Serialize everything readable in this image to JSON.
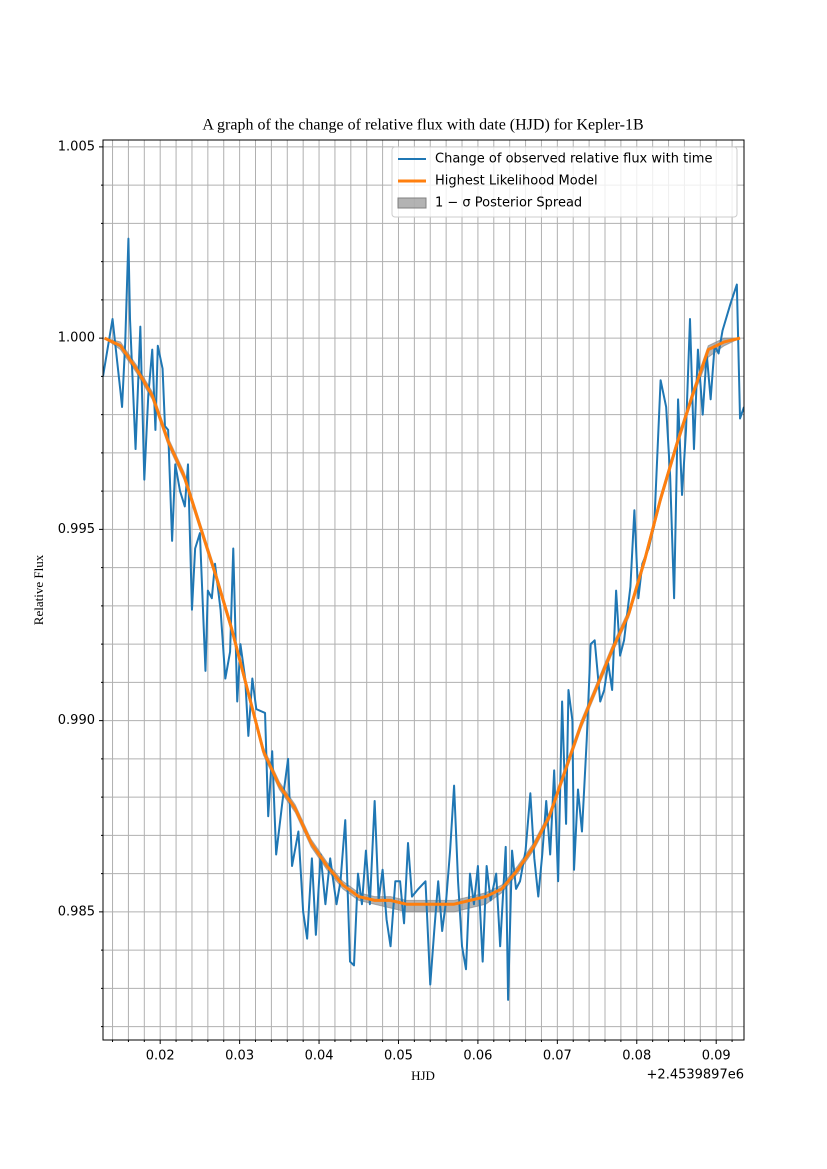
{
  "chart_data": {
    "type": "line",
    "title": "A graph of the change of relative flux with date (HJD) for Kepler-1B",
    "xlabel": "HJD",
    "ylabel": "Relative Flux",
    "x_offset_label": "+2.4539897e6",
    "xlim": [
      0.0128,
      0.0935
    ],
    "ylim": [
      0.98165,
      1.00518
    ],
    "xticks": [
      0.02,
      0.03,
      0.04,
      0.05,
      0.06,
      0.07,
      0.08,
      0.09
    ],
    "x_minor_ticks": [
      0.014,
      0.016,
      0.018,
      0.022,
      0.024,
      0.026,
      0.028,
      0.032,
      0.034,
      0.036,
      0.038,
      0.042,
      0.044,
      0.046,
      0.048,
      0.052,
      0.054,
      0.056,
      0.058,
      0.062,
      0.064,
      0.066,
      0.068,
      0.072,
      0.074,
      0.076,
      0.078,
      0.082,
      0.084,
      0.086,
      0.088,
      0.092
    ],
    "yticks": [
      0.985,
      {
        "value": 0.99,
        "label": "0.990"
      },
      0.995,
      {
        "value": 1.0,
        "label": "1.000"
      },
      1.005
    ],
    "y_minor_ticks": [
      0.982,
      0.983,
      0.984,
      0.986,
      0.987,
      0.988,
      0.989,
      0.991,
      0.992,
      0.993,
      0.994,
      0.996,
      0.997,
      0.998,
      0.999,
      1.001,
      1.002,
      1.003,
      1.004
    ],
    "grid": true,
    "legend": "upper right",
    "series": [
      {
        "name": "Change of observed relative flux with time",
        "color": "#1f77b4",
        "x": [
          0.0128,
          0.014,
          0.015,
          0.0152,
          0.0156,
          0.016,
          0.0162,
          0.0169,
          0.0175,
          0.018,
          0.0185,
          0.019,
          0.0194,
          0.0197,
          0.0203,
          0.0206,
          0.021,
          0.0215,
          0.0219,
          0.0225,
          0.0231,
          0.0235,
          0.024,
          0.0244,
          0.025,
          0.0257,
          0.026,
          0.0265,
          0.0269,
          0.0276,
          0.0282,
          0.0288,
          0.0292,
          0.0297,
          0.0301,
          0.0307,
          0.0311,
          0.0316,
          0.0321,
          0.0332,
          0.0336,
          0.0341,
          0.0346,
          0.0354,
          0.0361,
          0.0366,
          0.0374,
          0.038,
          0.0385,
          0.0391,
          0.0396,
          0.0402,
          0.0408,
          0.0414,
          0.0422,
          0.0427,
          0.0433,
          0.0439,
          0.0444,
          0.0449,
          0.0454,
          0.0459,
          0.0464,
          0.047,
          0.0475,
          0.048,
          0.0485,
          0.049,
          0.0496,
          0.0502,
          0.0507,
          0.0512,
          0.0517,
          0.0525,
          0.0534,
          0.054,
          0.0545,
          0.055,
          0.0555,
          0.056,
          0.0565,
          0.057,
          0.0575,
          0.058,
          0.0585,
          0.059,
          0.0595,
          0.06,
          0.0606,
          0.0611,
          0.0616,
          0.0623,
          0.0628,
          0.0635,
          0.0638,
          0.0643,
          0.0648,
          0.0653,
          0.066,
          0.0666,
          0.0671,
          0.0676,
          0.0681,
          0.0686,
          0.0691,
          0.0696,
          0.0701,
          0.0706,
          0.0711,
          0.0714,
          0.0719,
          0.0721,
          0.0726,
          0.0731,
          0.0737,
          0.0742,
          0.0747,
          0.0754,
          0.0759,
          0.0764,
          0.0769,
          0.0774,
          0.0779,
          0.0784,
          0.0792,
          0.0797,
          0.0802,
          0.0807,
          0.0815,
          0.0822,
          0.083,
          0.0837,
          0.0842,
          0.0847,
          0.0852,
          0.0857,
          0.0862,
          0.0867,
          0.0872,
          0.0877,
          0.0883,
          0.0888,
          0.0893,
          0.0898,
          0.0903,
          0.0908,
          0.0918,
          0.0926,
          0.093,
          0.0935
        ],
        "values": [
          0.999,
          1.0005,
          0.9986,
          0.9982,
          0.9999,
          1.0026,
          1.0005,
          0.9971,
          1.0003,
          0.9963,
          0.9985,
          0.9997,
          0.9976,
          0.9998,
          0.9992,
          0.9977,
          0.9976,
          0.9947,
          0.9967,
          0.996,
          0.9956,
          0.9967,
          0.9929,
          0.9945,
          0.9949,
          0.9913,
          0.9934,
          0.9932,
          0.9941,
          0.9929,
          0.9911,
          0.9918,
          0.9945,
          0.9905,
          0.992,
          0.9911,
          0.9896,
          0.9911,
          0.9903,
          0.9902,
          0.9875,
          0.9892,
          0.9865,
          0.9879,
          0.989,
          0.9862,
          0.9871,
          0.985,
          0.9843,
          0.9864,
          0.9844,
          0.9865,
          0.9852,
          0.9864,
          0.9852,
          0.9858,
          0.9874,
          0.9837,
          0.9836,
          0.986,
          0.9852,
          0.9866,
          0.9852,
          0.9879,
          0.9853,
          0.9861,
          0.9848,
          0.9841,
          0.9858,
          0.9858,
          0.9847,
          0.9868,
          0.9854,
          0.9856,
          0.9858,
          0.9831,
          0.9845,
          0.9858,
          0.9845,
          0.9853,
          0.9866,
          0.9883,
          0.9858,
          0.9841,
          0.9835,
          0.986,
          0.9852,
          0.9862,
          0.9837,
          0.9862,
          0.9853,
          0.986,
          0.9841,
          0.9867,
          0.9827,
          0.9866,
          0.9856,
          0.9858,
          0.9866,
          0.9881,
          0.9864,
          0.9854,
          0.9865,
          0.9879,
          0.9865,
          0.9887,
          0.9858,
          0.9905,
          0.9873,
          0.9908,
          0.99,
          0.9861,
          0.9882,
          0.9871,
          0.9895,
          0.992,
          0.9921,
          0.9905,
          0.9908,
          0.9915,
          0.9908,
          0.9934,
          0.9917,
          0.9921,
          0.9935,
          0.9955,
          0.9932,
          0.9941,
          0.9945,
          0.9951,
          0.9989,
          0.9982,
          0.9964,
          0.9932,
          0.9984,
          0.9959,
          0.9976,
          1.0005,
          0.9971,
          0.9997,
          0.998,
          0.9996,
          0.9984,
          0.9998,
          0.9996,
          1.0002,
          1.0009,
          1.0014,
          0.9979,
          0.9982
        ]
      },
      {
        "name": "Highest Likelihood Model",
        "color": "#ff7f0e",
        "x": [
          0.013,
          0.015,
          0.017,
          0.019,
          0.021,
          0.023,
          0.025,
          0.027,
          0.029,
          0.031,
          0.033,
          0.035,
          0.037,
          0.039,
          0.041,
          0.043,
          0.045,
          0.047,
          0.049,
          0.051,
          0.053,
          0.055,
          0.057,
          0.059,
          0.061,
          0.063,
          0.065,
          0.067,
          0.069,
          0.071,
          0.073,
          0.075,
          0.077,
          0.079,
          0.081,
          0.083,
          0.085,
          0.087,
          0.089,
          0.091,
          0.093
        ],
        "values": [
          1.0,
          0.9998,
          0.9992,
          0.9985,
          0.9973,
          0.9964,
          0.9951,
          0.9938,
          0.9924,
          0.9908,
          0.9892,
          0.9883,
          0.9877,
          0.9868,
          0.9862,
          0.9857,
          0.9854,
          0.9853,
          0.9853,
          0.9852,
          0.9852,
          0.9852,
          0.9852,
          0.9853,
          0.9854,
          0.9856,
          0.9861,
          0.9867,
          0.9875,
          0.9887,
          0.9899,
          0.9909,
          0.9919,
          0.9928,
          0.9942,
          0.9958,
          0.9972,
          0.9985,
          0.9997,
          0.9999,
          1.0
        ]
      },
      {
        "name": "1 − σ Posterior Spread",
        "type": "band",
        "color": "#808080",
        "x": [
          0.013,
          0.015,
          0.017,
          0.019,
          0.021,
          0.023,
          0.025,
          0.027,
          0.029,
          0.031,
          0.033,
          0.035,
          0.037,
          0.039,
          0.041,
          0.043,
          0.045,
          0.047,
          0.049,
          0.051,
          0.053,
          0.055,
          0.057,
          0.059,
          0.061,
          0.063,
          0.065,
          0.067,
          0.069,
          0.071,
          0.073,
          0.075,
          0.077,
          0.079,
          0.081,
          0.083,
          0.085,
          0.087,
          0.089,
          0.091,
          0.093
        ],
        "lower": [
          1.0,
          0.9997,
          0.9991,
          0.9984,
          0.9972,
          0.9963,
          0.995,
          0.9937,
          0.9923,
          0.9907,
          0.9891,
          0.9882,
          0.9876,
          0.9867,
          0.9861,
          0.9856,
          0.9853,
          0.9852,
          0.9851,
          0.985,
          0.985,
          0.985,
          0.985,
          0.9851,
          0.9852,
          0.9855,
          0.986,
          0.9866,
          0.9874,
          0.9886,
          0.9898,
          0.9908,
          0.9918,
          0.9927,
          0.9941,
          0.9957,
          0.9971,
          0.9984,
          0.9995,
          0.9998,
          1.0
        ],
        "upper": [
          1.0,
          0.9999,
          0.9993,
          0.9986,
          0.9974,
          0.9965,
          0.9952,
          0.9939,
          0.9925,
          0.9909,
          0.9893,
          0.9884,
          0.9878,
          0.9869,
          0.9863,
          0.9858,
          0.9855,
          0.9854,
          0.9854,
          0.9853,
          0.9853,
          0.9853,
          0.9853,
          0.9854,
          0.9855,
          0.9857,
          0.9862,
          0.9868,
          0.9876,
          0.9888,
          0.99,
          0.991,
          0.992,
          0.9929,
          0.9943,
          0.9959,
          0.9973,
          0.9986,
          0.9998,
          1.0,
          1.0
        ]
      }
    ]
  }
}
